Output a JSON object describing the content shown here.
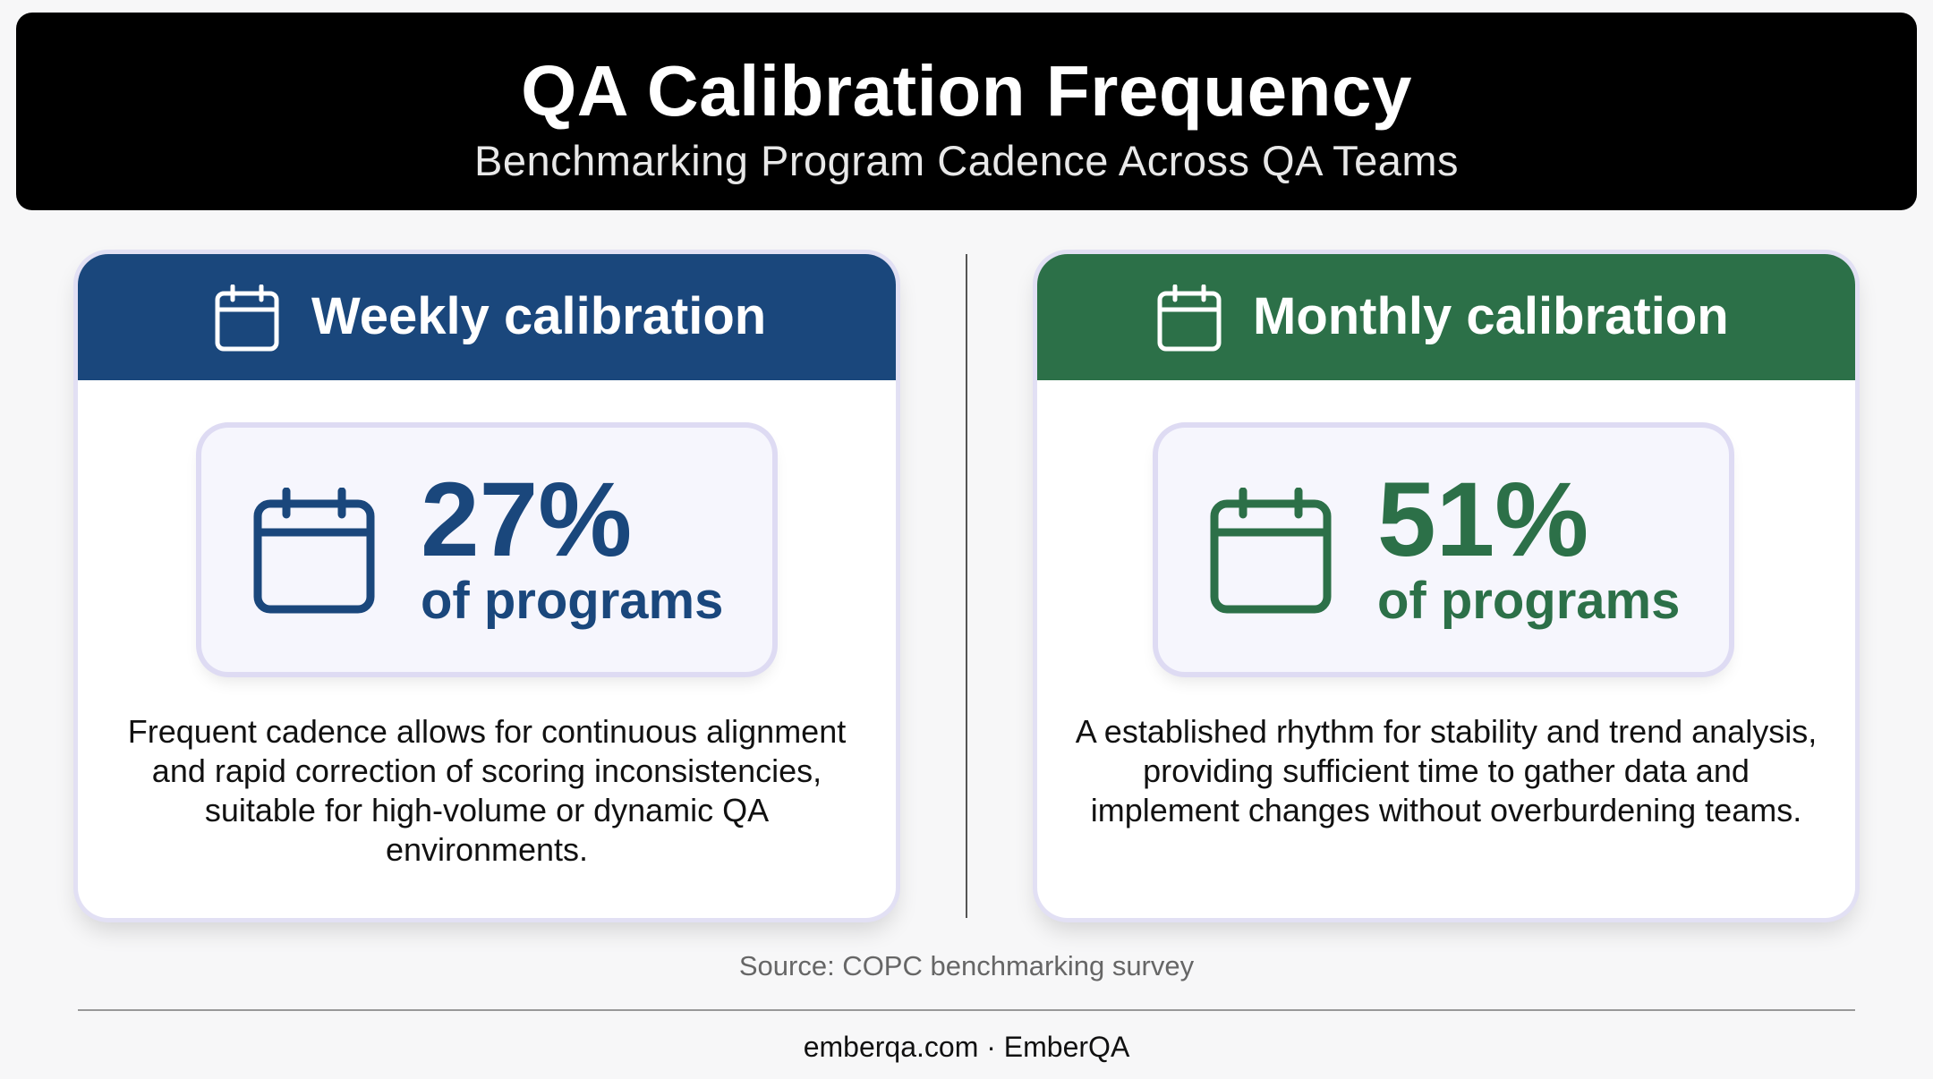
{
  "header": {
    "title": "QA Calibration Frequency",
    "subtitle": "Benchmarking Program Cadence Across QA Teams"
  },
  "cards": [
    {
      "icon": "calendar-icon",
      "title": "Weekly calibration",
      "stat_value": "27%",
      "stat_label": "of programs",
      "description": "Frequent cadence allows for continuous alignment and rapid correction of scoring inconsistencies, suitable for high-volume or dynamic QA environments.",
      "color": "#1a477c"
    },
    {
      "icon": "calendar-icon",
      "title": "Monthly calibration",
      "stat_value": "51%",
      "stat_label": "of programs",
      "description": "A established rhythm for stability and trend analysis, providing sufficient time to gather data and implement changes without overburdening teams.",
      "color": "#2c7048"
    }
  ],
  "source": "Source: COPC benchmarking survey",
  "footer": "emberqa.com · EmberQA"
}
